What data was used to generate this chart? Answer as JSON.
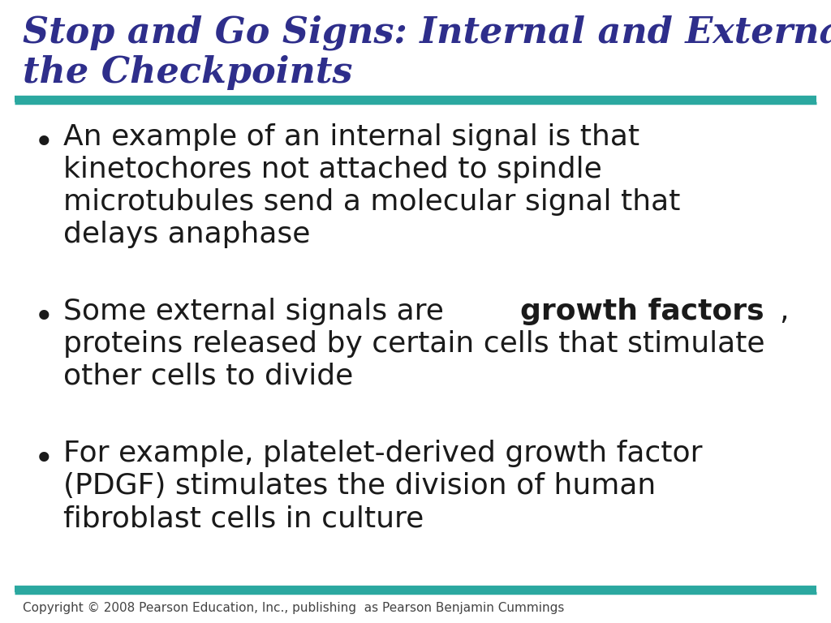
{
  "title_line1": "Stop and Go Signs: Internal and External Signals at",
  "title_line2": "the Checkpoints",
  "title_color": "#2E2E8B",
  "title_fontsize": 32,
  "teal_color": "#2BA8A0",
  "bg_color": "#FFFFFF",
  "footer_text": "Copyright © 2008 Pearson Education, Inc., publishing  as Pearson Benjamin Cummings",
  "footer_fontsize": 11,
  "footer_color": "#444444",
  "bullet_color": "#1a1a1a",
  "bullet_fontsize": 26,
  "bullet1": [
    "An example of an internal signal is that",
    "kinetochores not attached to spindle",
    "microtubules send a molecular signal that",
    "delays anaphase"
  ],
  "bullet2_pre": "Some external signals are ",
  "bullet2_bold": "growth factors",
  "bullet2_post": ",",
  "bullet2_rest": [
    "proteins released by certain cells that stimulate",
    "other cells to divide"
  ],
  "bullet3": [
    "For example, platelet-derived growth factor",
    "(PDGF) stimulates the division of human",
    "fibroblast cells in culture"
  ]
}
